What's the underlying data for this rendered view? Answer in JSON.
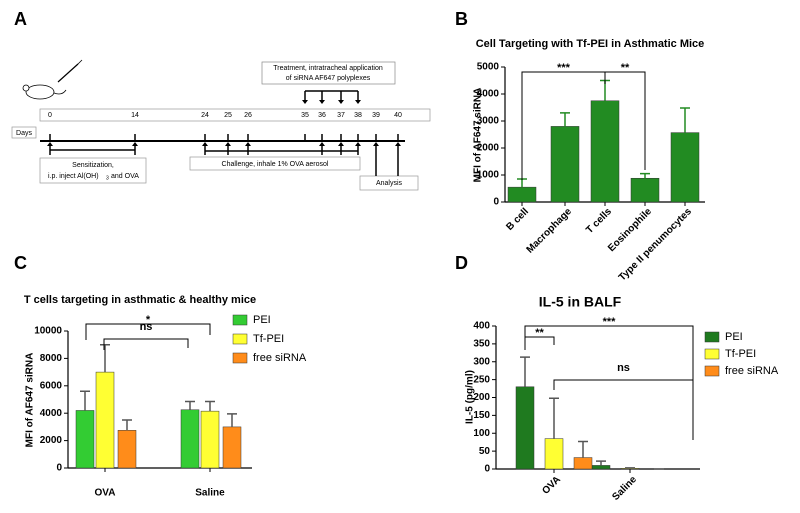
{
  "panel_letters": [
    "A",
    "B",
    "C",
    "D"
  ],
  "timeline": {
    "treatment": [
      "Treatment, intratracheal application",
      "of siRNA AF647 polyplexes"
    ],
    "days_label": "Days",
    "days": [
      0,
      14,
      24,
      25,
      26,
      35,
      36,
      37,
      38,
      39,
      40
    ],
    "sensitization": [
      "Sensitization,",
      "i.p. inject Al(OH)",
      "3",
      "and OVA"
    ],
    "challenge": "Challenge, inhale 1% OVA aerosol",
    "analysis": "Analysis"
  },
  "chart_data": [
    {
      "type": "bar",
      "title": "Cell Targeting with Tf-PEI in Asthmatic Mice",
      "ylabel": "MFI of AF647 siRNA",
      "categories": [
        "B cell",
        "Macrophage",
        "T cells",
        "Eosinophile",
        "Type II penumocytes"
      ],
      "values": [
        550,
        2800,
        3750,
        880,
        2570
      ],
      "errors": [
        300,
        500,
        750,
        170,
        910
      ],
      "color": "#228b22",
      "ylim": [
        0,
        5000
      ],
      "yticks": [
        0,
        1000,
        2000,
        3000,
        4000,
        5000
      ],
      "annotations": [
        "***",
        "**"
      ]
    },
    {
      "type": "grouped-bar",
      "title": "T cells targeting in asthmatic & healthy mice",
      "ylabel": "MFI of AF647 siRNA",
      "categories": [
        "OVA",
        "Saline"
      ],
      "series": [
        {
          "name": "PEI",
          "color": "#33cc33",
          "values": [
            4200,
            4250
          ],
          "errors": [
            1400,
            600
          ]
        },
        {
          "name": "Tf-PEI",
          "color": "#ffff33",
          "values": [
            7000,
            4150
          ],
          "errors": [
            2000,
            700
          ]
        },
        {
          "name": "free siRNA",
          "color": "#ff8c1a",
          "values": [
            2750,
            3000
          ],
          "errors": [
            750,
            950
          ]
        }
      ],
      "ylim": [
        0,
        10000
      ],
      "yticks": [
        0,
        2000,
        4000,
        6000,
        8000,
        10000
      ],
      "annotations": [
        "*",
        "ns"
      ]
    },
    {
      "type": "grouped-bar",
      "title": "IL-5 in BALF",
      "ylabel": "IL-5 (pg/ml)",
      "categories": [
        "OVA",
        "Saline"
      ],
      "series": [
        {
          "name": "PEI",
          "color": "#1f7a1f",
          "values": [
            230,
            10
          ],
          "errors": [
            83,
            12
          ]
        },
        {
          "name": "Tf-PEI",
          "color": "#ffff33",
          "values": [
            85,
            2
          ],
          "errors": [
            113,
            1
          ]
        },
        {
          "name": "free siRNA",
          "color": "#ff8c1a",
          "values": [
            32,
            0
          ],
          "errors": [
            45,
            0
          ]
        }
      ],
      "ylim": [
        0,
        400
      ],
      "yticks": [
        0,
        50,
        100,
        150,
        200,
        250,
        300,
        350,
        400
      ],
      "annotations": [
        "***",
        "**",
        "ns"
      ]
    }
  ]
}
